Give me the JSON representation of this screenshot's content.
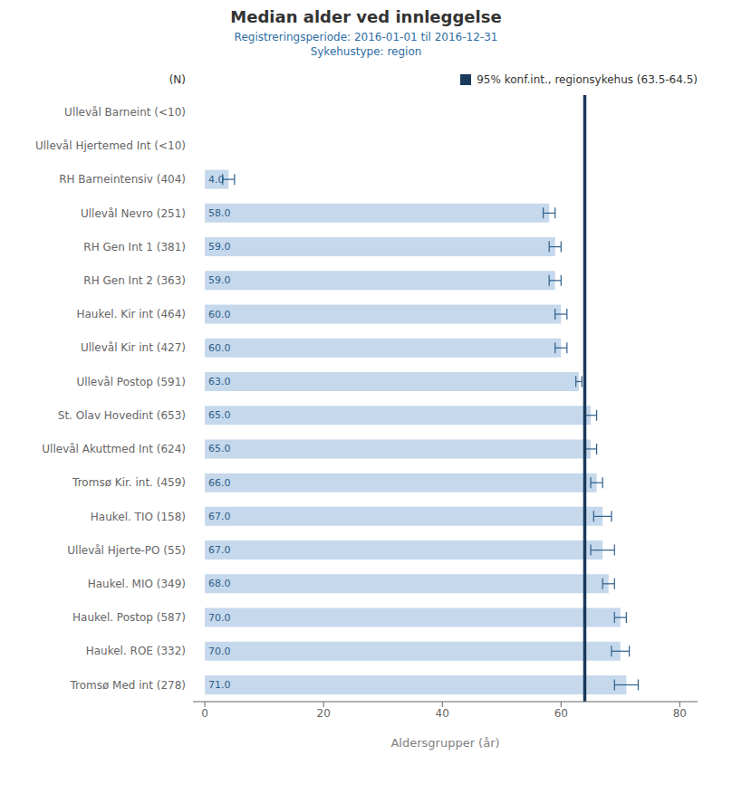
{
  "chart_data": {
    "type": "bar",
    "orientation": "horizontal",
    "title": "Median alder ved innleggelse",
    "subtitle": [
      "Registreringsperiode: 2016-01-01 til 2016-12-31",
      "Sykehustype: region"
    ],
    "xlabel": "Aldersgrupper (år)",
    "annotations": [
      "(N)"
    ],
    "categories": [
      "Ullevål Barneint (<10)",
      "Ullevål Hjertemed Int (<10)",
      "RH Barneintensiv (404)",
      "Ullevål Nevro (251)",
      "RH Gen Int 1 (381)",
      "RH Gen Int 2 (363)",
      "Haukel. Kir int (464)",
      "Ullevål Kir int (427)",
      "Ullevål Postop (591)",
      "St. Olav Hovedint (653)",
      "Ullevål Akuttmed Int (624)",
      "Tromsø Kir. int. (459)",
      "Haukel. TIO (158)",
      "Ullevål Hjerte-PO (55)",
      "Haukel. MIO (349)",
      "Haukel. Postop (587)",
      "Haukel. ROE (332)",
      "Tromsø Med int (278)"
    ],
    "values": [
      null,
      null,
      4.0,
      58.0,
      59.0,
      59.0,
      60.0,
      60.0,
      63.0,
      65.0,
      65.0,
      66.0,
      67.0,
      67.0,
      68.0,
      70.0,
      70.0,
      71.0
    ],
    "ci_low": [
      null,
      null,
      3.0,
      57.0,
      58.0,
      58.0,
      59.0,
      59.0,
      62.5,
      64.0,
      64.0,
      65.0,
      65.5,
      65.0,
      67.0,
      69.0,
      68.5,
      69.0
    ],
    "ci_high": [
      null,
      null,
      5.0,
      59.0,
      60.0,
      60.0,
      61.0,
      61.0,
      63.5,
      66.0,
      66.0,
      67.0,
      68.5,
      69.0,
      69.0,
      71.0,
      71.5,
      73.0
    ],
    "value_labels": [
      null,
      null,
      "4.0",
      "58.0",
      "59.0",
      "59.0",
      "60.0",
      "60.0",
      "63.0",
      "65.0",
      "65.0",
      "66.0",
      "67.0",
      "67.0",
      "68.0",
      "70.0",
      "70.0",
      "71.0"
    ],
    "data_labels": true,
    "color": "#c5d8ec",
    "reference_line": {
      "value": 64,
      "label": "95% konf.int., regionsykehus (63.5-64.5)",
      "color": "#1a3a5c"
    },
    "legend": "upper right",
    "grid": false,
    "xlim": [
      -2,
      83
    ],
    "xticks": [
      0,
      20,
      40,
      60,
      80
    ]
  }
}
